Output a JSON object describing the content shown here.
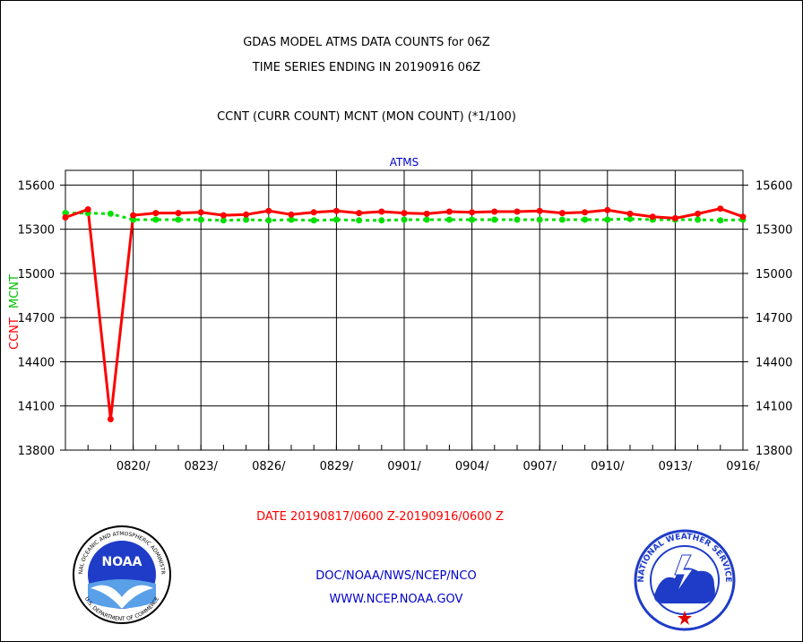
{
  "header": {
    "title_line1": "GDAS MODEL ATMS DATA COUNTS for 06Z",
    "title_line2": "TIME SERIES ENDING IN 20190916 06Z",
    "subtitle": "CCNT (CURR COUNT) MCNT (MON COUNT) (*1/100)"
  },
  "footer": {
    "date_range": "DATE 20190817/0600 Z-20190916/0600 Z",
    "org_line": "DOC/NOAA/NWS/NCEP/NCO",
    "url_line": "WWW.NCEP.NOAA.GOV"
  },
  "logos": {
    "noaa_text": "NOAA",
    "noaa_ring_top": "NATIONAL OCEANIC AND ATMOSPHERIC ADMINISTRATION",
    "noaa_ring_bottom": "U.S. DEPARTMENT OF COMMERCE",
    "nws_ring_top": "NATIONAL WEATHER SERVICE"
  },
  "colors": {
    "ccnt": "#ff0000",
    "mcnt": "#00e000",
    "panel_title": "#0000cc",
    "footer_links": "#0000cc",
    "date_range": "#ff0000"
  },
  "chart_data": {
    "type": "line",
    "title": "ATMS",
    "ylabel_series": [
      "CCNT",
      "MCNT"
    ],
    "ylim": [
      13800,
      15700
    ],
    "y_ticks": [
      13800,
      14100,
      14400,
      14700,
      15000,
      15300,
      15600
    ],
    "x_tick_labels": [
      "0820/",
      "0823/",
      "0826/",
      "0829/",
      "0901/",
      "0904/",
      "0907/",
      "0910/",
      "0913/",
      "0916/"
    ],
    "grid": true,
    "series": [
      {
        "name": "CCNT",
        "values": [
          15380,
          15435,
          14010,
          15395,
          15410,
          15410,
          15415,
          15395,
          15400,
          15425,
          15400,
          15415,
          15425,
          15410,
          15420,
          15410,
          15405,
          15420,
          15415,
          15420,
          15420,
          15425,
          15410,
          15415,
          15430,
          15405,
          15385,
          15375,
          15405,
          15440,
          15385
        ]
      },
      {
        "name": "MCNT",
        "values": [
          15410,
          15410,
          15405,
          15365,
          15365,
          15365,
          15365,
          15360,
          15365,
          15360,
          15365,
          15360,
          15365,
          15360,
          15360,
          15365,
          15365,
          15365,
          15365,
          15365,
          15365,
          15365,
          15365,
          15365,
          15365,
          15370,
          15365,
          15365,
          15365,
          15360,
          15365
        ]
      }
    ]
  }
}
